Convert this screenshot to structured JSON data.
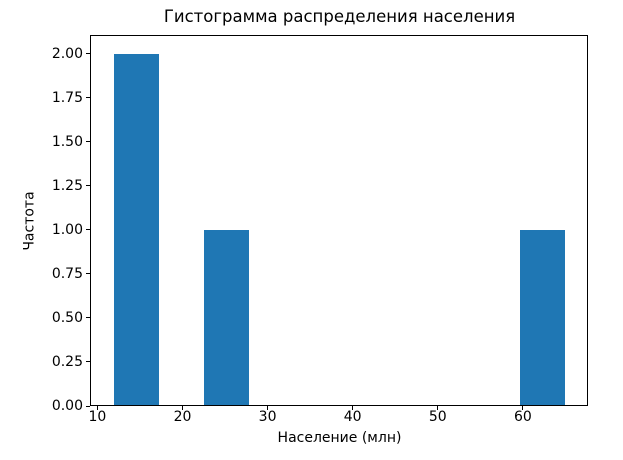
{
  "figure": {
    "background": "#ffffff",
    "text_color": "#000000"
  },
  "chart_data": {
    "type": "bar",
    "chart_kind": "histogram",
    "title": "Гистограмма распределения населения",
    "xlabel": "Население (млн)",
    "ylabel": "Частота",
    "bar_color": "#1f77b4",
    "grid": false,
    "legend": "none",
    "xlim": [
      9.25,
      67.65
    ],
    "ylim": [
      0,
      2.1
    ],
    "xticks": [
      "10",
      "20",
      "30",
      "40",
      "50",
      "60"
    ],
    "yticks": [
      "0.00",
      "0.25",
      "0.50",
      "0.75",
      "1.00",
      "1.25",
      "1.50",
      "1.75",
      "2.00"
    ],
    "bin_edges": [
      11.9,
      17.21,
      22.52,
      27.83,
      33.14,
      38.45,
      43.76,
      49.07,
      54.38,
      59.69,
      65.0
    ],
    "bin_counts": [
      2,
      0,
      1,
      0,
      0,
      0,
      0,
      0,
      0,
      1
    ],
    "visible_bars": [
      {
        "from": 11.9,
        "to": 17.2,
        "frequency": 2
      },
      {
        "from": 22.5,
        "to": 27.8,
        "frequency": 1
      },
      {
        "from": 59.7,
        "to": 65.0,
        "frequency": 1
      }
    ]
  }
}
